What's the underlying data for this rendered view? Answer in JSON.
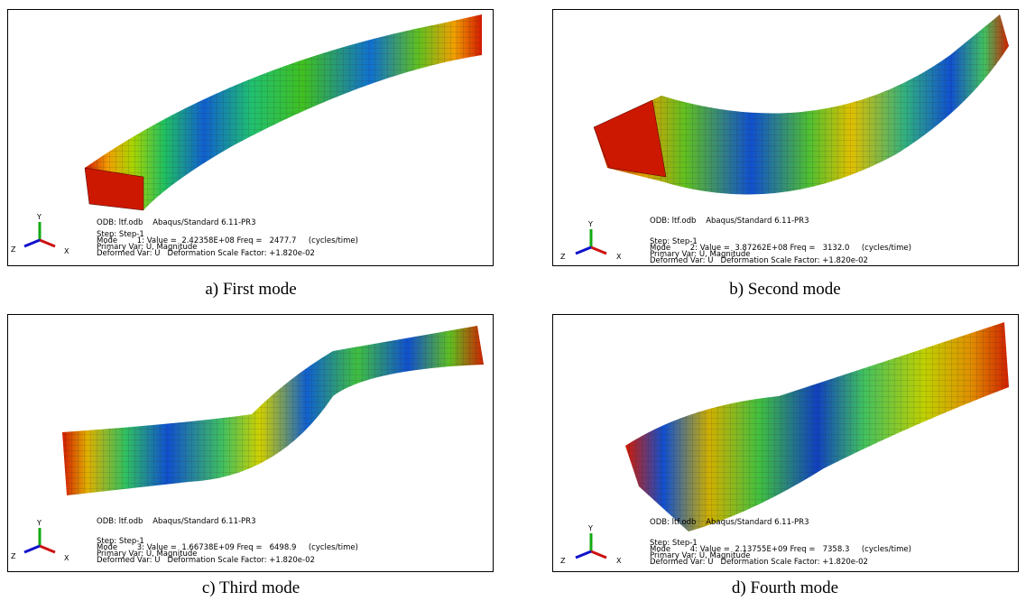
{
  "panels": [
    {
      "caption": "a) First mode",
      "axes": {
        "y": "Y",
        "z": "Z",
        "x": "X"
      },
      "odb": "ODB: ltf.odb    Abaqus/Standard 6.11-PR3",
      "step": "Step: Step-1",
      "mode": "Mode        1: Value =  2.42358E+08 Freq =   2477.7     (cycles/time)",
      "primary": "Primary Var: U, Magnitude",
      "deformed": "Deformed Var: U   Deformation Scale Factor: +1.820e-02"
    },
    {
      "caption": "b) Second mode",
      "axes": {
        "y": "Y",
        "z": "Z",
        "x": "X"
      },
      "odb": "ODB: ltf.odb    Abaqus/Standard 6.11-PR3",
      "step": "Step: Step-1",
      "mode": "Mode        2: Value =  3.87262E+08 Freq =   3132.0     (cycles/time)",
      "primary": "Primary Var: U, Magnitude",
      "deformed": "Deformed Var: U   Deformation Scale Factor: +1.820e-02"
    },
    {
      "caption": "c) Third mode",
      "axes": {
        "y": "Y",
        "z": "Z",
        "x": "X"
      },
      "odb": "ODB: ltf.odb    Abaqus/Standard 6.11-PR3",
      "step": "Step: Step-1",
      "mode": "Mode        3: Value =  1.66738E+09 Freq =   6498.9     (cycles/time)",
      "primary": "Primary Var: U, Magnitude",
      "deformed": "Deformed Var: U   Deformation Scale Factor: +1.820e-02"
    },
    {
      "caption": "d) Fourth mode",
      "axes": {
        "y": "Y",
        "z": "Z",
        "x": "X"
      },
      "odb": "ODB: ltf.odb    Abaqus/Standard 6.11-PR3",
      "step": "Step: Step-1",
      "mode": "Mode        4: Value =  2.13755E+09 Freq =   7358.3     (cycles/time)",
      "primary": "Primary Var: U, Magnitude",
      "deformed": "Deformed Var: U   Deformation Scale Factor: +1.820e-02"
    }
  ]
}
